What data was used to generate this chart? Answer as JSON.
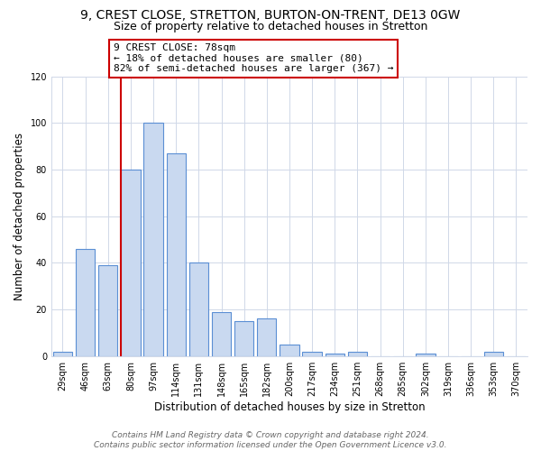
{
  "title": "9, CREST CLOSE, STRETTON, BURTON-ON-TRENT, DE13 0GW",
  "subtitle": "Size of property relative to detached houses in Stretton",
  "xlabel": "Distribution of detached houses by size in Stretton",
  "ylabel": "Number of detached properties",
  "bar_labels": [
    "29sqm",
    "46sqm",
    "63sqm",
    "80sqm",
    "97sqm",
    "114sqm",
    "131sqm",
    "148sqm",
    "165sqm",
    "182sqm",
    "200sqm",
    "217sqm",
    "234sqm",
    "251sqm",
    "268sqm",
    "285sqm",
    "302sqm",
    "319sqm",
    "336sqm",
    "353sqm",
    "370sqm"
  ],
  "bar_heights": [
    2,
    46,
    39,
    80,
    100,
    87,
    40,
    19,
    15,
    16,
    5,
    2,
    1,
    2,
    0,
    0,
    1,
    0,
    0,
    2,
    0
  ],
  "bar_color": "#c9d9f0",
  "bar_edge_color": "#5b8fd4",
  "vline_index": 3,
  "vline_color": "#cc0000",
  "annotation_line1": "9 CREST CLOSE: 78sqm",
  "annotation_line2": "← 18% of detached houses are smaller (80)",
  "annotation_line3": "82% of semi-detached houses are larger (367) →",
  "annotation_box_color": "#ffffff",
  "annotation_box_edge_color": "#cc0000",
  "ylim": [
    0,
    120
  ],
  "yticks": [
    0,
    20,
    40,
    60,
    80,
    100,
    120
  ],
  "footer_line1": "Contains HM Land Registry data © Crown copyright and database right 2024.",
  "footer_line2": "Contains public sector information licensed under the Open Government Licence v3.0.",
  "background_color": "#ffffff",
  "grid_color": "#d0d8e8",
  "title_fontsize": 10,
  "subtitle_fontsize": 9,
  "axis_label_fontsize": 8.5,
  "tick_fontsize": 7,
  "annotation_fontsize": 8,
  "footer_fontsize": 6.5
}
